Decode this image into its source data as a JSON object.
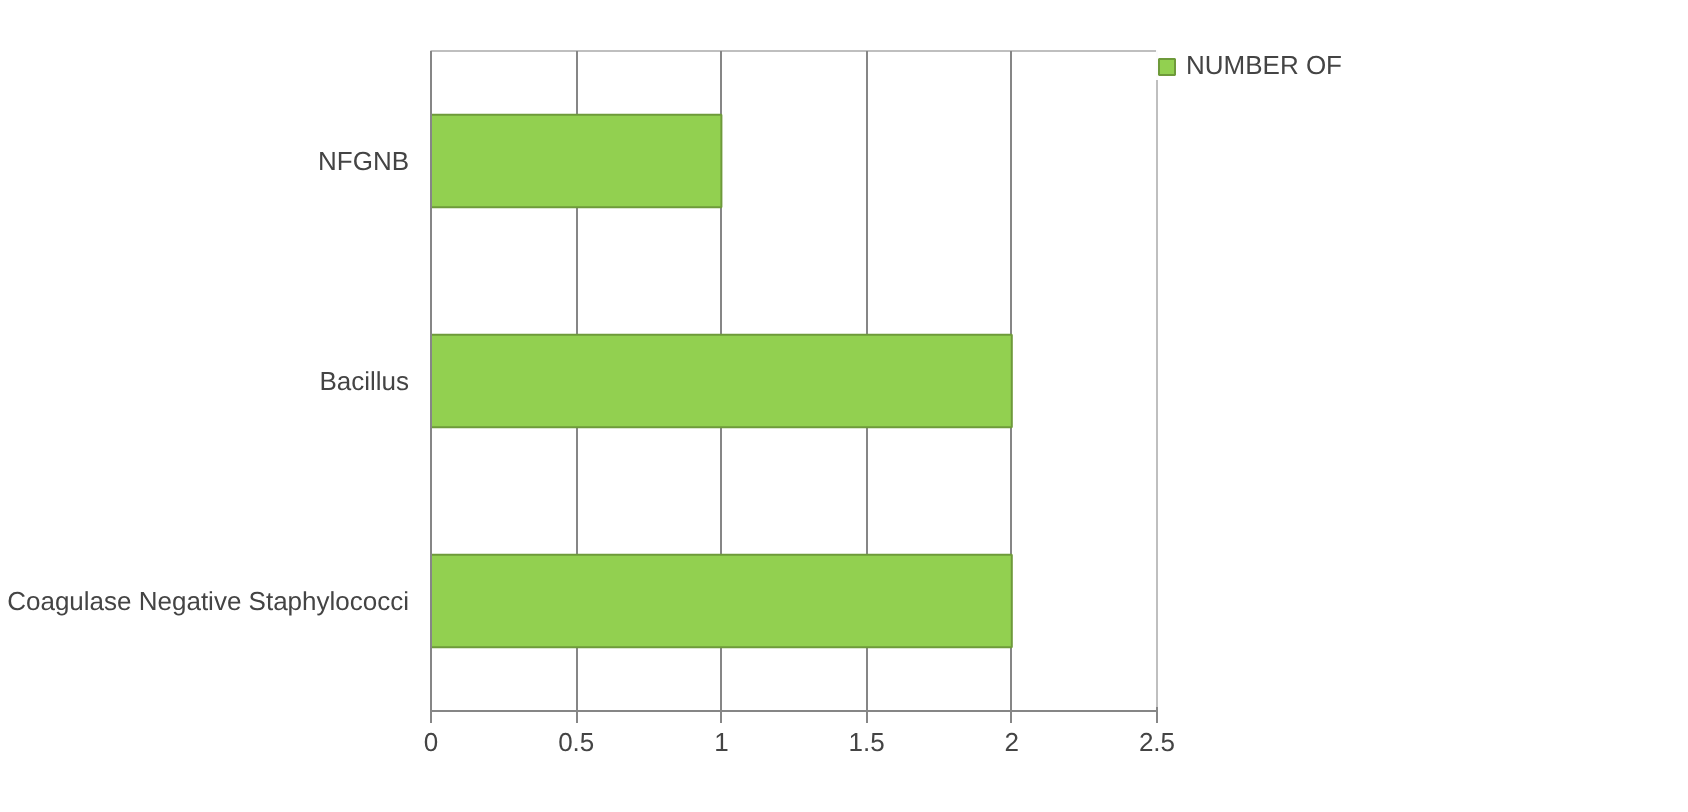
{
  "chart_data": {
    "type": "bar",
    "orientation": "horizontal",
    "categories": [
      "NFGNB",
      "Bacillus",
      "Coagulase Negative Staphylococci"
    ],
    "series": [
      {
        "name": "NUMBER OF",
        "color": "#92d050",
        "values": [
          1,
          2,
          2
        ]
      }
    ],
    "xlim": [
      0,
      2.5
    ],
    "xticks": [
      0,
      0.5,
      1,
      1.5,
      2,
      2.5
    ],
    "grid": "x",
    "legend": "right"
  }
}
